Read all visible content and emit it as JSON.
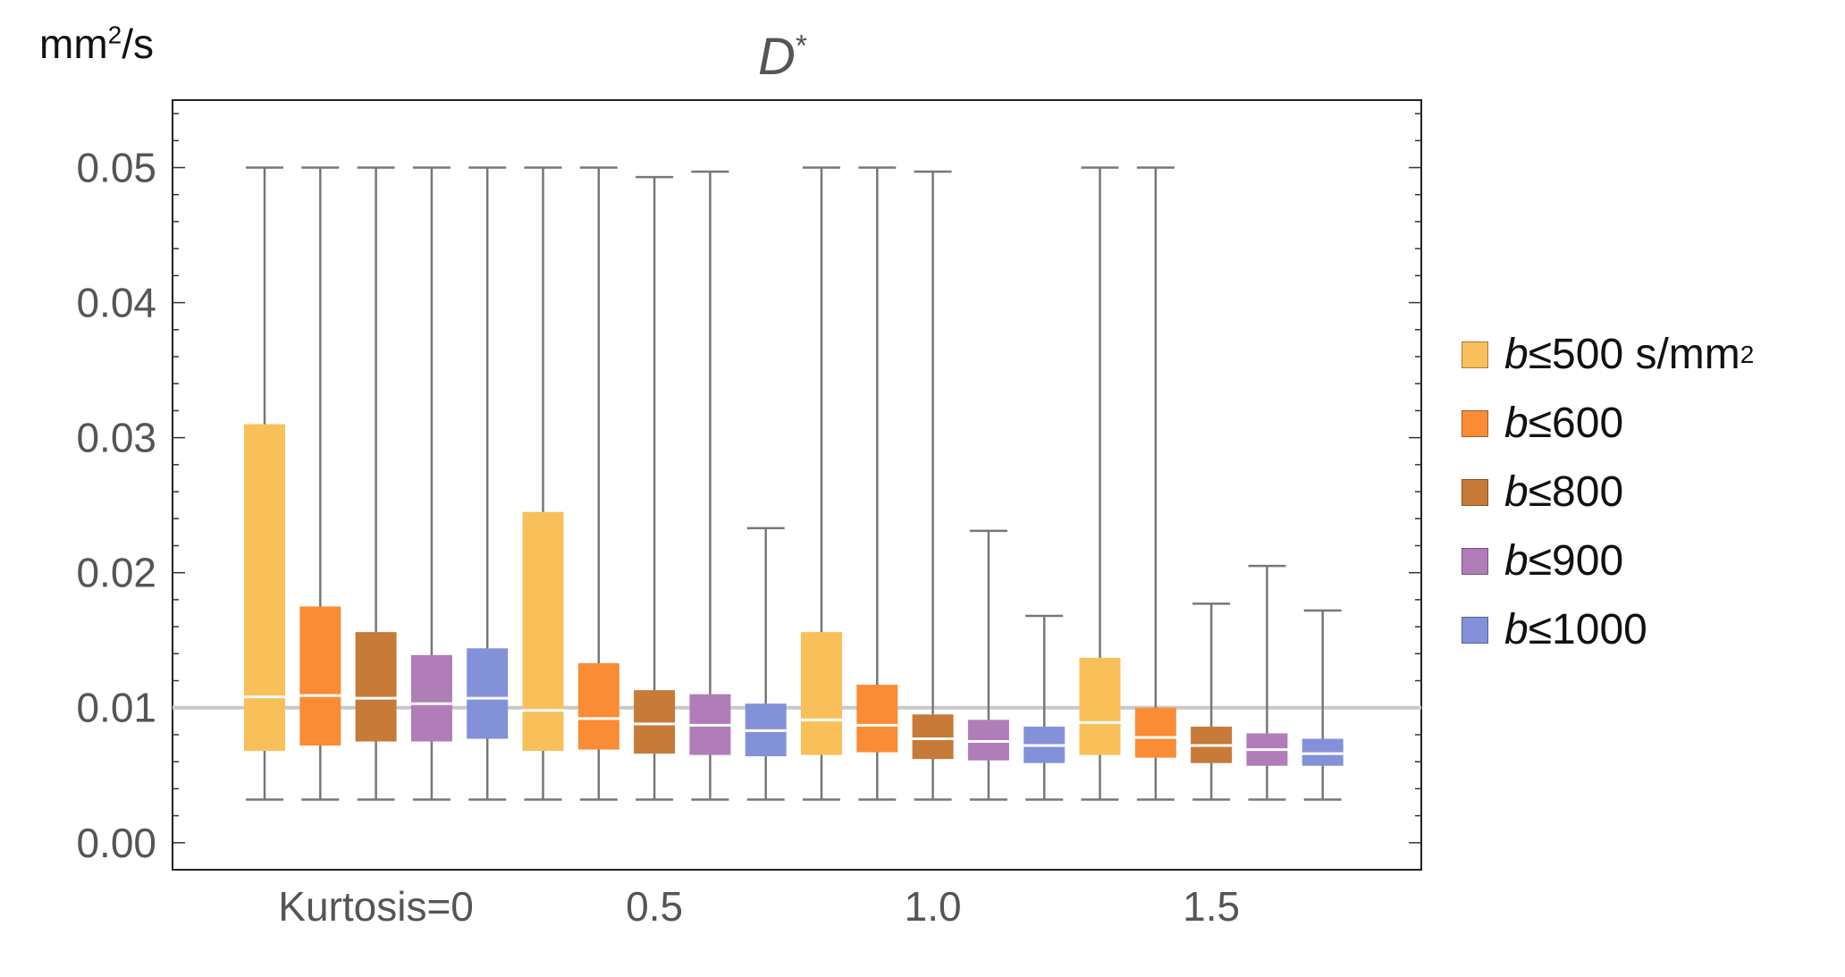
{
  "chart_data": {
    "type": "box",
    "title_main": "D",
    "title_sup": "*",
    "unit": "mm",
    "unit_sup": "2",
    "unit_tail": "/s",
    "ylim": [
      -0.002,
      0.055
    ],
    "yticks": [
      0.0,
      0.01,
      0.02,
      0.03,
      0.04,
      0.05
    ],
    "ytick_labels": [
      "0.00",
      "0.01",
      "0.02",
      "0.03",
      "0.04",
      "0.05"
    ],
    "reference_line": 0.01,
    "groups": [
      "Kurtosis=0",
      "0.5",
      "1.0",
      "1.5"
    ],
    "legend": [
      {
        "name": "b≤500",
        "prefix": "b",
        "text": "≤500 s/mm",
        "sup": "2",
        "color": "#F9C05A"
      },
      {
        "name": "b≤600",
        "prefix": "b",
        "text": "≤600",
        "sup": "",
        "color": "#FA8C35"
      },
      {
        "name": "b≤800",
        "prefix": "b",
        "text": "≤800",
        "sup": "",
        "color": "#C87A38"
      },
      {
        "name": "b≤900",
        "prefix": "b",
        "text": "≤900",
        "sup": "",
        "color": "#B07DB9"
      },
      {
        "name": "b≤1000",
        "prefix": "b",
        "text": "≤1000",
        "sup": "",
        "color": "#8392D8"
      }
    ],
    "boxes": [
      {
        "group": "Kurtosis=0",
        "series": "b≤500",
        "whisker_low": 0.0032,
        "q1": 0.0068,
        "median": 0.0108,
        "q3": 0.031,
        "whisker_high": 0.05
      },
      {
        "group": "Kurtosis=0",
        "series": "b≤600",
        "whisker_low": 0.0032,
        "q1": 0.0072,
        "median": 0.0109,
        "q3": 0.0175,
        "whisker_high": 0.05
      },
      {
        "group": "Kurtosis=0",
        "series": "b≤800",
        "whisker_low": 0.0032,
        "q1": 0.0075,
        "median": 0.0107,
        "q3": 0.0156,
        "whisker_high": 0.05
      },
      {
        "group": "Kurtosis=0",
        "series": "b≤900",
        "whisker_low": 0.0032,
        "q1": 0.0075,
        "median": 0.0103,
        "q3": 0.0139,
        "whisker_high": 0.05
      },
      {
        "group": "Kurtosis=0",
        "series": "b≤1000",
        "whisker_low": 0.0032,
        "q1": 0.0077,
        "median": 0.0107,
        "q3": 0.0144,
        "whisker_high": 0.05
      },
      {
        "group": "0.5",
        "series": "b≤500",
        "whisker_low": 0.0032,
        "q1": 0.0068,
        "median": 0.0098,
        "q3": 0.0245,
        "whisker_high": 0.05
      },
      {
        "group": "0.5",
        "series": "b≤600",
        "whisker_low": 0.0032,
        "q1": 0.0069,
        "median": 0.0092,
        "q3": 0.0133,
        "whisker_high": 0.05
      },
      {
        "group": "0.5",
        "series": "b≤800",
        "whisker_low": 0.0032,
        "q1": 0.0066,
        "median": 0.0088,
        "q3": 0.0113,
        "whisker_high": 0.0493
      },
      {
        "group": "0.5",
        "series": "b≤900",
        "whisker_low": 0.0032,
        "q1": 0.0065,
        "median": 0.0087,
        "q3": 0.011,
        "whisker_high": 0.0497
      },
      {
        "group": "0.5",
        "series": "b≤1000",
        "whisker_low": 0.0032,
        "q1": 0.0064,
        "median": 0.0083,
        "q3": 0.0103,
        "whisker_high": 0.0233
      },
      {
        "group": "1.0",
        "series": "b≤500",
        "whisker_low": 0.0032,
        "q1": 0.0065,
        "median": 0.0091,
        "q3": 0.0156,
        "whisker_high": 0.05
      },
      {
        "group": "1.0",
        "series": "b≤600",
        "whisker_low": 0.0032,
        "q1": 0.0067,
        "median": 0.0087,
        "q3": 0.0117,
        "whisker_high": 0.05
      },
      {
        "group": "1.0",
        "series": "b≤800",
        "whisker_low": 0.0032,
        "q1": 0.0062,
        "median": 0.0077,
        "q3": 0.0095,
        "whisker_high": 0.0497
      },
      {
        "group": "1.0",
        "series": "b≤900",
        "whisker_low": 0.0032,
        "q1": 0.0061,
        "median": 0.0075,
        "q3": 0.0091,
        "whisker_high": 0.0231
      },
      {
        "group": "1.0",
        "series": "b≤1000",
        "whisker_low": 0.0032,
        "q1": 0.0059,
        "median": 0.0072,
        "q3": 0.0086,
        "whisker_high": 0.0168
      },
      {
        "group": "1.5",
        "series": "b≤500",
        "whisker_low": 0.0032,
        "q1": 0.0065,
        "median": 0.0089,
        "q3": 0.0137,
        "whisker_high": 0.05
      },
      {
        "group": "1.5",
        "series": "b≤600",
        "whisker_low": 0.0032,
        "q1": 0.0063,
        "median": 0.0078,
        "q3": 0.01,
        "whisker_high": 0.05
      },
      {
        "group": "1.5",
        "series": "b≤800",
        "whisker_low": 0.0032,
        "q1": 0.0059,
        "median": 0.0072,
        "q3": 0.0086,
        "whisker_high": 0.0177
      },
      {
        "group": "1.5",
        "series": "b≤900",
        "whisker_low": 0.0032,
        "q1": 0.0057,
        "median": 0.0069,
        "q3": 0.0081,
        "whisker_high": 0.0205
      },
      {
        "group": "1.5",
        "series": "b≤1000",
        "whisker_low": 0.0032,
        "q1": 0.0057,
        "median": 0.0066,
        "q3": 0.0077,
        "whisker_high": 0.0172
      }
    ]
  }
}
